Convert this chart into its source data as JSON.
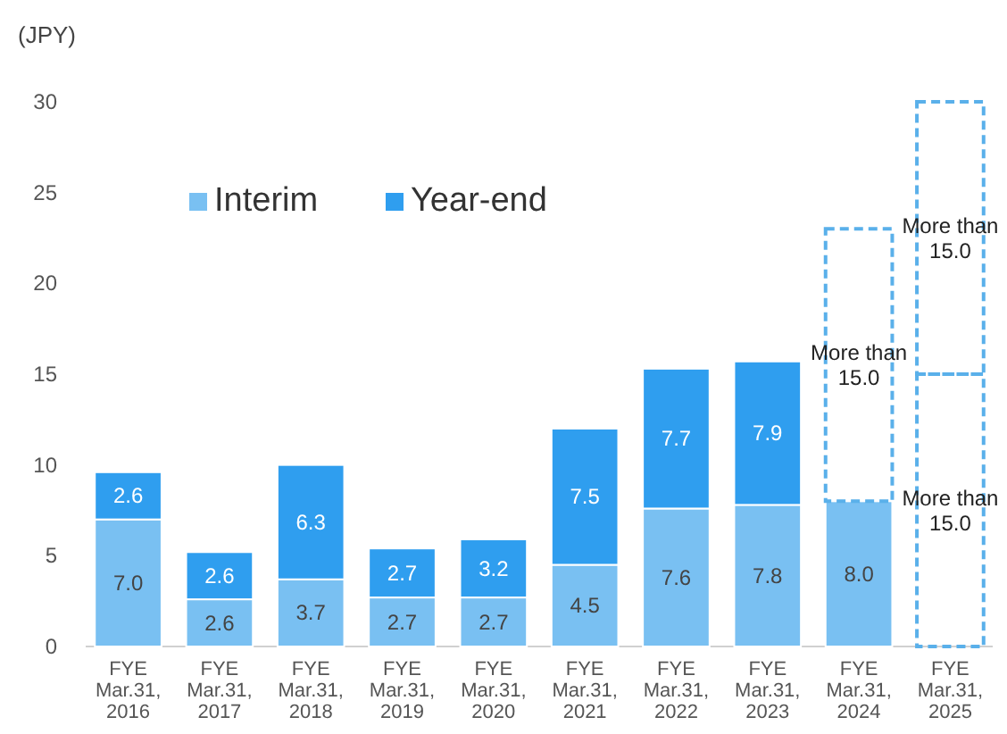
{
  "chart_data": {
    "type": "bar",
    "ylabel": "(JPY)",
    "stacked": true,
    "categories": [
      "FYE Mar.31, 2016",
      "FYE Mar.31, 2017",
      "FYE Mar.31, 2018",
      "FYE Mar.31, 2019",
      "FYE Mar.31, 2020",
      "FYE Mar.31, 2021",
      "FYE Mar.31, 2022",
      "FYE Mar.31, 2023",
      "FYE Mar.31, 2024",
      "FYE Mar.31, 2025"
    ],
    "series": [
      {
        "name": "Interim",
        "color": "#79c0f2",
        "values": [
          7.0,
          2.6,
          3.7,
          2.7,
          2.7,
          4.5,
          7.6,
          7.8,
          8.0,
          null
        ],
        "value_labels": [
          "7.0",
          "2.6",
          "3.7",
          "2.7",
          "2.7",
          "4.5",
          "7.6",
          "7.8",
          "8.0",
          null
        ]
      },
      {
        "name": "Year-end",
        "color": "#2f9eef",
        "values": [
          2.6,
          2.6,
          6.3,
          2.7,
          3.2,
          7.5,
          7.7,
          7.9,
          null,
          null
        ],
        "value_labels": [
          "2.6",
          "2.6",
          "6.3",
          "2.7",
          "3.2",
          "7.5",
          "7.7",
          "7.9",
          null,
          null
        ]
      },
      {
        "color": "#5ab0ea",
        "line_style": "dashed",
        "values": [
          null,
          null,
          null,
          null,
          null,
          null,
          null,
          null,
          null,
          15
        ],
        "value_labels": [
          null,
          null,
          null,
          null,
          null,
          null,
          null,
          null,
          null,
          "More than 15.0"
        ]
      },
      {
        "color": "#5ab0ea",
        "line_style": "dashed",
        "values": [
          null,
          null,
          null,
          null,
          null,
          null,
          null,
          null,
          15,
          15
        ],
        "value_labels": [
          null,
          null,
          null,
          null,
          null,
          null,
          null,
          null,
          "More than 15.0",
          "More than 15.0"
        ]
      }
    ],
    "ylim": [
      0,
      30
    ],
    "yticks": [
      0,
      5,
      10,
      15,
      20,
      25,
      30
    ],
    "grid": false,
    "legend": "top left"
  }
}
